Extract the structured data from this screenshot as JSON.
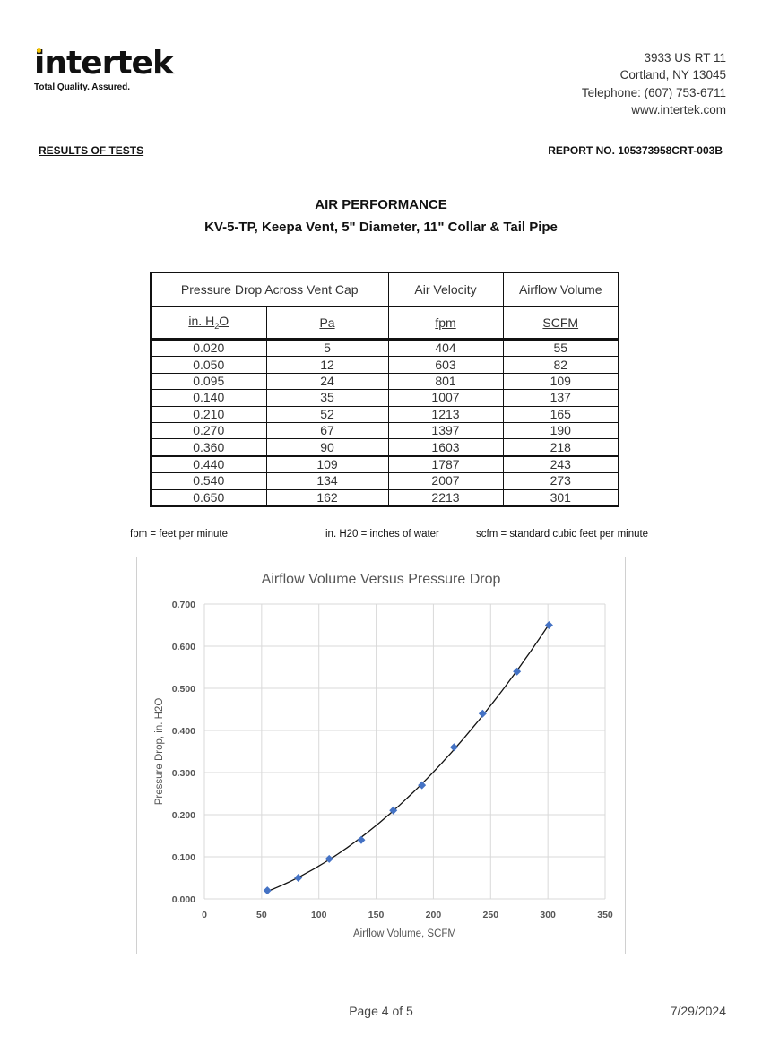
{
  "header": {
    "logo_text": "intertek",
    "tagline": "Total Quality. Assured.",
    "address": [
      "3933 US RT 11",
      "Cortland, NY 13045",
      "Telephone:  (607) 753-6711",
      "www.intertek.com"
    ],
    "results_label": "RESULTS OF TESTS",
    "report_no": "REPORT NO. 105373958CRT-003B"
  },
  "title": {
    "line1": "AIR PERFORMANCE",
    "line2": "KV-5-TP, Keepa Vent, 5\" Diameter, 11\" Collar & Tail Pipe"
  },
  "table": {
    "group_headers": [
      "Pressure Drop Across Vent Cap",
      "Air Velocity",
      "Airflow Volume"
    ],
    "unit_headers": [
      "in. H",
      "2",
      "O",
      "Pa",
      "fpm",
      "SCFM"
    ],
    "rows": [
      [
        "0.020",
        "5",
        "404",
        "55"
      ],
      [
        "0.050",
        "12",
        "603",
        "82"
      ],
      [
        "0.095",
        "24",
        "801",
        "109"
      ],
      [
        "0.140",
        "35",
        "1007",
        "137"
      ],
      [
        "0.210",
        "52",
        "1213",
        "165"
      ],
      [
        "0.270",
        "67",
        "1397",
        "190"
      ],
      [
        "0.360",
        "90",
        "1603",
        "218"
      ],
      [
        "0.440",
        "109",
        "1787",
        "243"
      ],
      [
        "0.540",
        "134",
        "2007",
        "273"
      ],
      [
        "0.650",
        "162",
        "2213",
        "301"
      ]
    ]
  },
  "notes": [
    "fpm = feet per minute",
    "in. H20 = inches of water",
    "scfm = standard cubic feet per minute"
  ],
  "chart_data": {
    "type": "scatter",
    "title": "Airflow Volume Versus Pressure Drop",
    "xlabel": "Airflow Volume, SCFM",
    "ylabel": "Pressure Drop, in. H2O",
    "xlim": [
      0,
      350
    ],
    "ylim": [
      0,
      0.7
    ],
    "xticks": [
      "0",
      "50",
      "100",
      "150",
      "200",
      "250",
      "300",
      "350"
    ],
    "yticks": [
      "0.000",
      "0.100",
      "0.200",
      "0.300",
      "0.400",
      "0.500",
      "0.600",
      "0.700"
    ],
    "grid": true,
    "trendline": "polynomial",
    "marker_color": "#4472c4",
    "x": [
      55,
      82,
      109,
      137,
      165,
      190,
      218,
      243,
      273,
      301
    ],
    "y": [
      0.02,
      0.05,
      0.095,
      0.14,
      0.21,
      0.27,
      0.36,
      0.44,
      0.54,
      0.65
    ]
  },
  "footer": {
    "page": "Page 4 of 5",
    "date": "7/29/2024"
  }
}
